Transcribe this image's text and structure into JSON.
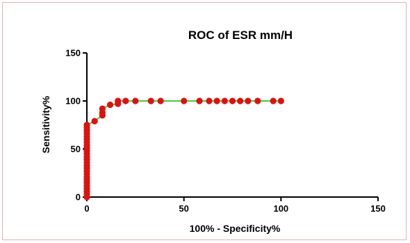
{
  "chart_data": {
    "type": "scatter",
    "title": "ROC of ESR mm/H",
    "xlabel": "100% - Specificity%",
    "ylabel": "Sensitivity%",
    "xlim": [
      0,
      150
    ],
    "ylim": [
      0,
      150
    ],
    "xticks": [
      0,
      50,
      100,
      150
    ],
    "yticks": [
      0,
      50,
      100,
      150
    ],
    "grid": false,
    "colors": {
      "points": "#e01010",
      "line": "#3ecf3e",
      "axis": "#000000"
    },
    "series": [
      {
        "points": [
          {
            "x": 0,
            "y": 0
          },
          {
            "x": 0,
            "y": 3
          },
          {
            "x": 0,
            "y": 6
          },
          {
            "x": 0,
            "y": 9
          },
          {
            "x": 0,
            "y": 12
          },
          {
            "x": 0,
            "y": 15
          },
          {
            "x": 0,
            "y": 18
          },
          {
            "x": 0,
            "y": 21
          },
          {
            "x": 0,
            "y": 24
          },
          {
            "x": 0,
            "y": 27
          },
          {
            "x": 0,
            "y": 30
          },
          {
            "x": 0,
            "y": 33
          },
          {
            "x": 0,
            "y": 36
          },
          {
            "x": 0,
            "y": 39
          },
          {
            "x": 0,
            "y": 42
          },
          {
            "x": 0,
            "y": 45
          },
          {
            "x": 0,
            "y": 48
          },
          {
            "x": 0,
            "y": 51
          },
          {
            "x": 0,
            "y": 54
          },
          {
            "x": 0,
            "y": 57
          },
          {
            "x": 0,
            "y": 60
          },
          {
            "x": 0,
            "y": 63
          },
          {
            "x": 0,
            "y": 66
          },
          {
            "x": 0,
            "y": 69
          },
          {
            "x": 0,
            "y": 72
          },
          {
            "x": 0,
            "y": 75
          },
          {
            "x": 4,
            "y": 79
          },
          {
            "x": 8,
            "y": 85
          },
          {
            "x": 8,
            "y": 88
          },
          {
            "x": 8,
            "y": 92
          },
          {
            "x": 12,
            "y": 96
          },
          {
            "x": 16,
            "y": 97
          },
          {
            "x": 16,
            "y": 100
          },
          {
            "x": 20,
            "y": 100
          },
          {
            "x": 25,
            "y": 100
          },
          {
            "x": 33,
            "y": 100
          },
          {
            "x": 38,
            "y": 100
          },
          {
            "x": 50,
            "y": 100
          },
          {
            "x": 58,
            "y": 100
          },
          {
            "x": 63,
            "y": 100
          },
          {
            "x": 67,
            "y": 100
          },
          {
            "x": 71,
            "y": 100
          },
          {
            "x": 75,
            "y": 100
          },
          {
            "x": 79,
            "y": 100
          },
          {
            "x": 83,
            "y": 100
          },
          {
            "x": 88,
            "y": 100
          },
          {
            "x": 96,
            "y": 100
          },
          {
            "x": 100,
            "y": 100
          }
        ]
      }
    ]
  }
}
